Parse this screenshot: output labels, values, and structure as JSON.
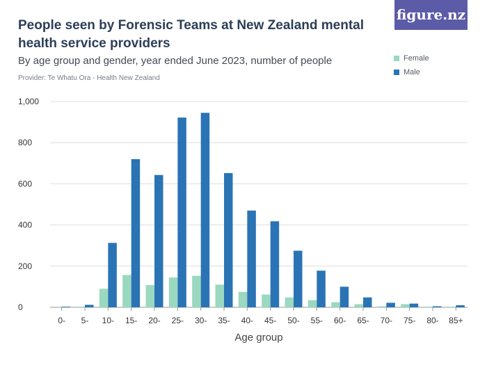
{
  "header": {
    "title": "People seen by Forensic Teams at New Zealand mental health service providers",
    "subtitle": "By age group and gender, year ended June 2023, number of people",
    "provider": "Provider: Te Whatu Ora - Health New Zealand",
    "brand": "figure.nz"
  },
  "colors": {
    "female": "#9ad9bf",
    "male": "#2a74b5",
    "brand_bg": "#5b5ba8"
  },
  "chart_data": {
    "type": "bar",
    "title": "People seen by Forensic Teams at New Zealand mental health service providers",
    "subtitle": "By age group and gender, year ended June 2023, number of people",
    "xlabel": "Age group",
    "ylabel": "",
    "ylim": [
      0,
      1000
    ],
    "yticks": [
      0,
      200,
      400,
      600,
      800,
      1000
    ],
    "ytick_labels": [
      "0",
      "200",
      "400",
      "600",
      "800",
      "1,000"
    ],
    "grid": true,
    "legend_position": "top-right",
    "categories": [
      "0-",
      "5-",
      "10-",
      "15-",
      "20-",
      "25-",
      "30-",
      "35-",
      "40-",
      "45-",
      "50-",
      "55-",
      "60-",
      "65-",
      "70-",
      "75-",
      "80-",
      "85+"
    ],
    "series": [
      {
        "name": "Female",
        "values": [
          0,
          3,
          90,
          157,
          108,
          145,
          153,
          110,
          75,
          62,
          48,
          35,
          25,
          15,
          5,
          15,
          3,
          3
        ]
      },
      {
        "name": "Male",
        "values": [
          3,
          12,
          313,
          720,
          643,
          922,
          945,
          652,
          470,
          418,
          275,
          178,
          100,
          48,
          22,
          18,
          5,
          10
        ]
      }
    ]
  }
}
